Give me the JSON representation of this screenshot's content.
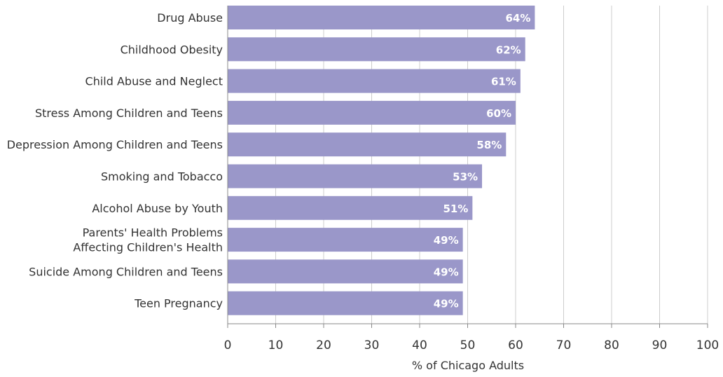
{
  "chart_data": {
    "type": "bar",
    "orientation": "horizontal",
    "categories": [
      "Drug Abuse",
      "Childhood Obesity",
      "Child Abuse and Neglect",
      "Stress Among Children and Teens",
      "Depression Among Children and Teens",
      "Smoking and Tobacco",
      "Alcohol Abuse by Youth",
      "Parents' Health Problems Affecting Children's Health",
      "Suicide Among Children and Teens",
      "Teen Pregnancy"
    ],
    "category_lines": [
      [
        "Drug Abuse"
      ],
      [
        "Childhood Obesity"
      ],
      [
        "Child Abuse and Neglect"
      ],
      [
        "Stress Among Children and Teens"
      ],
      [
        "Depression Among Children and Teens"
      ],
      [
        "Smoking and Tobacco"
      ],
      [
        "Alcohol Abuse by Youth"
      ],
      [
        "Parents' Health Problems",
        "Affecting Children's Health"
      ],
      [
        "Suicide Among Children and Teens"
      ],
      [
        "Teen Pregnancy"
      ]
    ],
    "values": [
      64,
      62,
      61,
      60,
      58,
      53,
      51,
      49,
      49,
      49
    ],
    "data_labels": [
      "64%",
      "62%",
      "61%",
      "60%",
      "58%",
      "53%",
      "51%",
      "49%",
      "49%",
      "49%"
    ],
    "xlabel": "% of Chicago Adults",
    "xlim": [
      0,
      100
    ],
    "xticks": [
      0,
      10,
      20,
      30,
      40,
      50,
      60,
      70,
      80,
      90,
      100
    ],
    "grid": true,
    "bar_color": "#9a97c9",
    "label_color": "#ffffff",
    "text_color": "#333333",
    "grid_color": "#cccccc"
  }
}
